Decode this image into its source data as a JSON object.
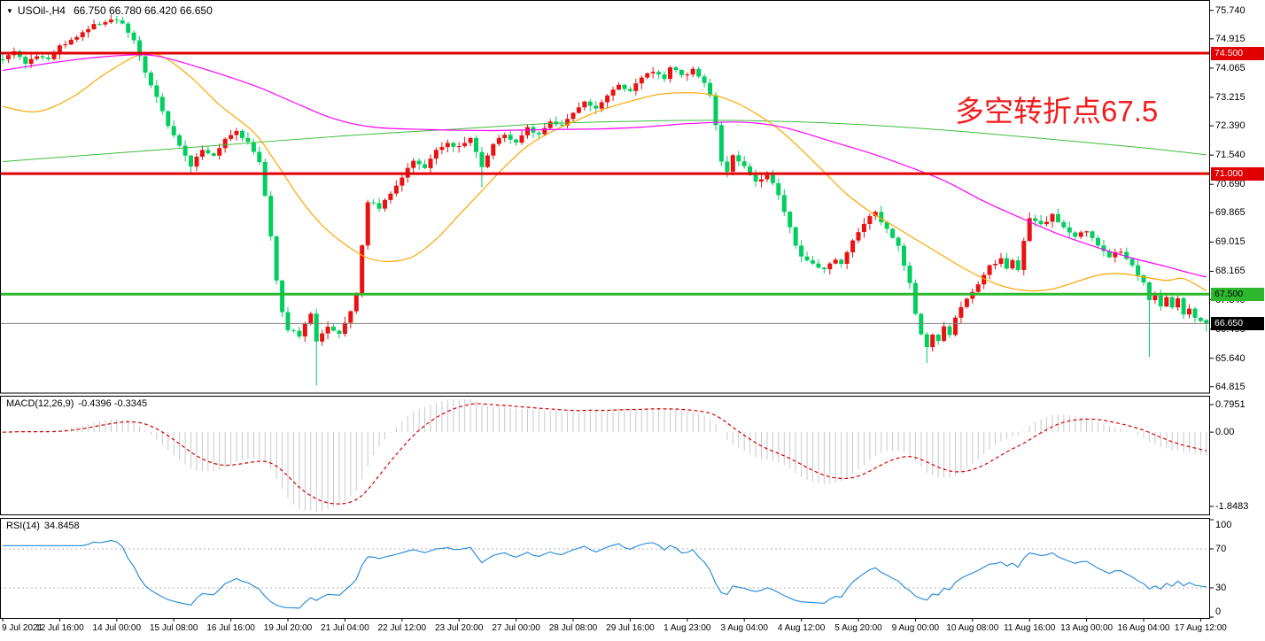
{
  "header": {
    "symbol_timeframe": "USOil-,H4",
    "ohlc_display": "66.750 66.780 66.420 66.650",
    "dropdown_icon": "symbol-dropdown"
  },
  "annotation": {
    "text": "多空转折点67.5",
    "color": "#F21D1D"
  },
  "colors": {
    "background": "#FFFFFF",
    "bull_candle": "#E81212",
    "bear_candle": "#00CE5E",
    "ma_green": "#3CBE3C",
    "ma_orange": "#FFA500",
    "ma_magenta": "#FF00FF",
    "level_red": "#E00000",
    "level_green": "#2EB82E",
    "current_price_line": "#808080",
    "current_price_badge": "#000000",
    "macd_histogram": "#C9C9C9",
    "macd_signal": "#D40000",
    "rsi_line": "#1E87DC",
    "rsi_levels_dashed": "#B0B0B0",
    "panel_border": "#000000"
  },
  "price_axis": {
    "ticks": [
      "75.740",
      "74.915",
      "74.065",
      "73.215",
      "72.390",
      "71.540",
      "70.690",
      "69.865",
      "69.015",
      "68.165",
      "67.340",
      "66.490",
      "65.640",
      "64.815"
    ]
  },
  "levels": [
    {
      "label": "74.500",
      "value": 74.5,
      "line_color": "#E00000",
      "badge_bg": "#E00000",
      "badge_text": "#FFFFFF",
      "width": 3
    },
    {
      "label": "71.000",
      "value": 71.0,
      "line_color": "#E00000",
      "badge_bg": "#E00000",
      "badge_text": "#FFFFFF",
      "width": 3
    },
    {
      "label": "67.500",
      "value": 67.5,
      "line_color": "#2EB82E",
      "badge_bg": "#2EB82E",
      "badge_text": "#000000",
      "width": 3
    }
  ],
  "current_price_line": {
    "label": "66.650",
    "value": 66.65,
    "line_color": "#808080",
    "badge_bg": "#000000",
    "badge_text": "#FFFFFF",
    "width": 1
  },
  "indicators": {
    "macd": {
      "label": "MACD(12,26,9)",
      "values_display": "-0.4396 -0.3345",
      "axis": [
        "0.7951",
        "0.00",
        "-1.8483"
      ],
      "params": {
        "fast": 12,
        "slow": 26,
        "signal": 9
      }
    },
    "rsi": {
      "label": "RSI(14)",
      "value_display": "34.8458",
      "axis": [
        "100",
        "70",
        "30",
        "0"
      ],
      "period": 14,
      "dashed_levels": [
        70,
        30
      ]
    }
  },
  "time_axis": {
    "bars_per_label": 10,
    "labels": [
      "9 Jul 2021",
      "12 Jul 16:00",
      "14 Jul 00:00",
      "15 Jul 08:00",
      "16 Jul 16:00",
      "19 Jul 20:00",
      "21 Jul 04:00",
      "22 Jul 12:00",
      "23 Jul 20:00",
      "27 Jul 00:00",
      "28 Jul 08:00",
      "29 Jul 16:00",
      "1 Aug 23:00",
      "3 Aug 04:00",
      "4 Aug 12:00",
      "5 Aug 20:00",
      "9 Aug 00:00",
      "10 Aug 08:00",
      "11 Aug 16:00",
      "13 Aug 00:00",
      "16 Aug 04:00",
      "17 Aug 12:00"
    ]
  },
  "chart_data": {
    "type": "candlestick",
    "symbol": "USOil",
    "timeframe": "H4",
    "title": "USOil-,H4 66.750 66.780 66.420 66.650",
    "bars": 212,
    "y_axis": {
      "min": 64.63,
      "max": 76.04,
      "ticks": [
        75.74,
        74.915,
        74.065,
        73.215,
        72.39,
        71.54,
        70.69,
        69.865,
        69.015,
        68.165,
        67.34,
        66.49,
        65.64,
        64.815
      ]
    },
    "horizontal_levels": [
      74.5,
      71.0,
      67.5
    ],
    "current_price": 66.65,
    "last_bar": {
      "open": 66.75,
      "high": 66.78,
      "low": 66.42,
      "close": 66.65
    },
    "price_path_anchors": [
      [
        0,
        74.35
      ],
      [
        2,
        74.55
      ],
      [
        4,
        74.2
      ],
      [
        6,
        74.45
      ],
      [
        8,
        74.3
      ],
      [
        10,
        74.7
      ],
      [
        13,
        75.0
      ],
      [
        16,
        75.3
      ],
      [
        19,
        75.5
      ],
      [
        21,
        75.35
      ],
      [
        23,
        74.9
      ],
      [
        25,
        73.9
      ],
      [
        27,
        73.2
      ],
      [
        29,
        72.4
      ],
      [
        31,
        71.8
      ],
      [
        33,
        71.25
      ],
      [
        35,
        71.7
      ],
      [
        37,
        71.5
      ],
      [
        39,
        72.0
      ],
      [
        41,
        72.25
      ],
      [
        43,
        71.9
      ],
      [
        45,
        71.3
      ],
      [
        46,
        70.4
      ],
      [
        47,
        69.2
      ],
      [
        48,
        67.9
      ],
      [
        49,
        67.0
      ],
      [
        50,
        66.5
      ],
      [
        52,
        66.3
      ],
      [
        54,
        66.9
      ],
      [
        55,
        66.1
      ],
      [
        57,
        66.6
      ],
      [
        59,
        66.35
      ],
      [
        61,
        67.0
      ],
      [
        62,
        67.5
      ],
      [
        63,
        68.9
      ],
      [
        64,
        70.2
      ],
      [
        66,
        70.0
      ],
      [
        68,
        70.4
      ],
      [
        70,
        70.9
      ],
      [
        72,
        71.4
      ],
      [
        74,
        71.15
      ],
      [
        76,
        71.7
      ],
      [
        78,
        71.9
      ],
      [
        80,
        71.75
      ],
      [
        82,
        72.05
      ],
      [
        84,
        71.2
      ],
      [
        86,
        71.9
      ],
      [
        88,
        72.15
      ],
      [
        90,
        71.9
      ],
      [
        92,
        72.3
      ],
      [
        94,
        72.15
      ],
      [
        96,
        72.5
      ],
      [
        98,
        72.35
      ],
      [
        100,
        72.8
      ],
      [
        102,
        73.1
      ],
      [
        104,
        72.85
      ],
      [
        106,
        73.3
      ],
      [
        108,
        73.6
      ],
      [
        110,
        73.35
      ],
      [
        112,
        73.8
      ],
      [
        114,
        74.0
      ],
      [
        116,
        73.75
      ],
      [
        117,
        74.1
      ],
      [
        119,
        73.85
      ],
      [
        121,
        74.0
      ],
      [
        123,
        73.65
      ],
      [
        124,
        73.3
      ],
      [
        125,
        72.4
      ],
      [
        126,
        71.4
      ],
      [
        127,
        71.1
      ],
      [
        128,
        71.55
      ],
      [
        130,
        71.2
      ],
      [
        132,
        70.75
      ],
      [
        134,
        71.0
      ],
      [
        136,
        70.4
      ],
      [
        137,
        69.9
      ],
      [
        138,
        69.4
      ],
      [
        139,
        68.9
      ],
      [
        140,
        68.55
      ],
      [
        142,
        68.35
      ],
      [
        144,
        68.25
      ],
      [
        146,
        68.55
      ],
      [
        147,
        68.35
      ],
      [
        148,
        68.75
      ],
      [
        150,
        69.35
      ],
      [
        152,
        69.75
      ],
      [
        153,
        69.85
      ],
      [
        155,
        69.4
      ],
      [
        157,
        68.9
      ],
      [
        159,
        67.8
      ],
      [
        160,
        66.9
      ],
      [
        161,
        66.3
      ],
      [
        162,
        65.95
      ],
      [
        163,
        66.35
      ],
      [
        164,
        66.1
      ],
      [
        165,
        66.55
      ],
      [
        166,
        66.3
      ],
      [
        167,
        66.8
      ],
      [
        168,
        67.1
      ],
      [
        169,
        67.35
      ],
      [
        171,
        67.8
      ],
      [
        173,
        68.3
      ],
      [
        175,
        68.5
      ],
      [
        176,
        68.25
      ],
      [
        177,
        68.45
      ],
      [
        178,
        68.2
      ],
      [
        179,
        69.0
      ],
      [
        180,
        69.75
      ],
      [
        182,
        69.5
      ],
      [
        184,
        69.8
      ],
      [
        186,
        69.4
      ],
      [
        188,
        69.2
      ],
      [
        190,
        69.35
      ],
      [
        192,
        68.95
      ],
      [
        194,
        68.6
      ],
      [
        196,
        68.75
      ],
      [
        198,
        68.3
      ],
      [
        200,
        67.8
      ],
      [
        201,
        67.3
      ],
      [
        202,
        67.5
      ],
      [
        203,
        67.1
      ],
      [
        204,
        67.45
      ],
      [
        205,
        67.15
      ],
      [
        206,
        67.4
      ],
      [
        207,
        66.9
      ],
      [
        208,
        67.1
      ],
      [
        209,
        66.8
      ],
      [
        210,
        66.75
      ],
      [
        211,
        66.65
      ]
    ],
    "wick_extremes": [
      {
        "bar": 19,
        "high": 75.62
      },
      {
        "bar": 33,
        "low": 71.02
      },
      {
        "bar": 55,
        "low": 64.85
      },
      {
        "bar": 84,
        "low": 70.6
      },
      {
        "bar": 162,
        "low": 65.5
      },
      {
        "bar": 201,
        "low": 65.68
      }
    ],
    "moving_averages": [
      {
        "name": "ma-slow-green",
        "color": "#3CBE3C",
        "width": 1,
        "anchors": [
          [
            0,
            71.35
          ],
          [
            20,
            71.6
          ],
          [
            40,
            71.85
          ],
          [
            60,
            72.1
          ],
          [
            80,
            72.3
          ],
          [
            95,
            72.45
          ],
          [
            110,
            72.52
          ],
          [
            125,
            72.55
          ],
          [
            140,
            72.5
          ],
          [
            155,
            72.38
          ],
          [
            170,
            72.2
          ],
          [
            185,
            71.98
          ],
          [
            200,
            71.75
          ],
          [
            211,
            71.55
          ]
        ]
      },
      {
        "name": "ma-mid-orange",
        "color": "#FFA500",
        "width": 1.2,
        "anchors": [
          [
            0,
            72.95
          ],
          [
            6,
            72.8
          ],
          [
            12,
            73.2
          ],
          [
            18,
            73.9
          ],
          [
            24,
            74.45
          ],
          [
            28,
            74.4
          ],
          [
            33,
            73.8
          ],
          [
            38,
            73.0
          ],
          [
            44,
            72.2
          ],
          [
            48,
            71.3
          ],
          [
            52,
            70.3
          ],
          [
            56,
            69.5
          ],
          [
            60,
            68.95
          ],
          [
            64,
            68.55
          ],
          [
            68,
            68.45
          ],
          [
            72,
            68.6
          ],
          [
            76,
            69.1
          ],
          [
            80,
            69.8
          ],
          [
            84,
            70.5
          ],
          [
            88,
            71.2
          ],
          [
            92,
            71.8
          ],
          [
            96,
            72.2
          ],
          [
            100,
            72.5
          ],
          [
            105,
            72.85
          ],
          [
            110,
            73.1
          ],
          [
            115,
            73.3
          ],
          [
            120,
            73.35
          ],
          [
            124,
            73.3
          ],
          [
            128,
            73.1
          ],
          [
            132,
            72.75
          ],
          [
            136,
            72.3
          ],
          [
            140,
            71.7
          ],
          [
            144,
            71.05
          ],
          [
            148,
            70.4
          ],
          [
            152,
            69.9
          ],
          [
            156,
            69.5
          ],
          [
            160,
            69.1
          ],
          [
            164,
            68.7
          ],
          [
            168,
            68.3
          ],
          [
            172,
            67.95
          ],
          [
            176,
            67.7
          ],
          [
            180,
            67.6
          ],
          [
            184,
            67.65
          ],
          [
            188,
            67.85
          ],
          [
            192,
            68.05
          ],
          [
            196,
            68.1
          ],
          [
            200,
            68.0
          ],
          [
            204,
            67.9
          ],
          [
            207,
            67.95
          ],
          [
            211,
            67.6
          ]
        ]
      },
      {
        "name": "ma-slower-magenta",
        "color": "#FF00FF",
        "width": 1.2,
        "anchors": [
          [
            0,
            74.0
          ],
          [
            10,
            74.25
          ],
          [
            18,
            74.4
          ],
          [
            25,
            74.45
          ],
          [
            30,
            74.3
          ],
          [
            38,
            73.9
          ],
          [
            45,
            73.5
          ],
          [
            52,
            73.0
          ],
          [
            58,
            72.6
          ],
          [
            65,
            72.35
          ],
          [
            75,
            72.28
          ],
          [
            85,
            72.25
          ],
          [
            95,
            72.28
          ],
          [
            105,
            72.3
          ],
          [
            112,
            72.35
          ],
          [
            120,
            72.45
          ],
          [
            128,
            72.5
          ],
          [
            133,
            72.45
          ],
          [
            138,
            72.3
          ],
          [
            145,
            71.95
          ],
          [
            152,
            71.6
          ],
          [
            158,
            71.25
          ],
          [
            165,
            70.8
          ],
          [
            172,
            70.2
          ],
          [
            178,
            69.75
          ],
          [
            185,
            69.25
          ],
          [
            192,
            68.85
          ],
          [
            198,
            68.55
          ],
          [
            204,
            68.3
          ],
          [
            208,
            68.12
          ],
          [
            211,
            68.0
          ]
        ]
      }
    ]
  }
}
